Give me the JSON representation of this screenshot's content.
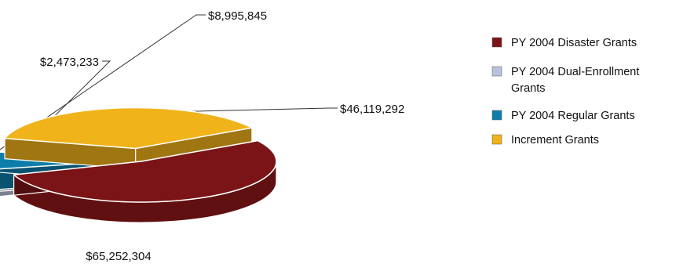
{
  "chart_data": {
    "type": "pie",
    "style": "3d-exploded",
    "title": "",
    "legend_position": "right",
    "slices": [
      {
        "label": "PY 2004 Disaster Grants",
        "value": 65252304,
        "value_label": "$65,252,304",
        "color": "#7b1416"
      },
      {
        "label": "PY 2004 Dual-Enrollment Grants",
        "value": 2473233,
        "value_label": "$2,473,233",
        "color": "#b9c2dc"
      },
      {
        "label": "PY 2004 Regular Grants",
        "value": 8995845,
        "value_label": "$8,995,845",
        "color": "#0d7ea9"
      },
      {
        "label": "Increment Grants",
        "value": 46119292,
        "value_label": "$46,119,292",
        "color": "#f1b31a"
      }
    ]
  }
}
